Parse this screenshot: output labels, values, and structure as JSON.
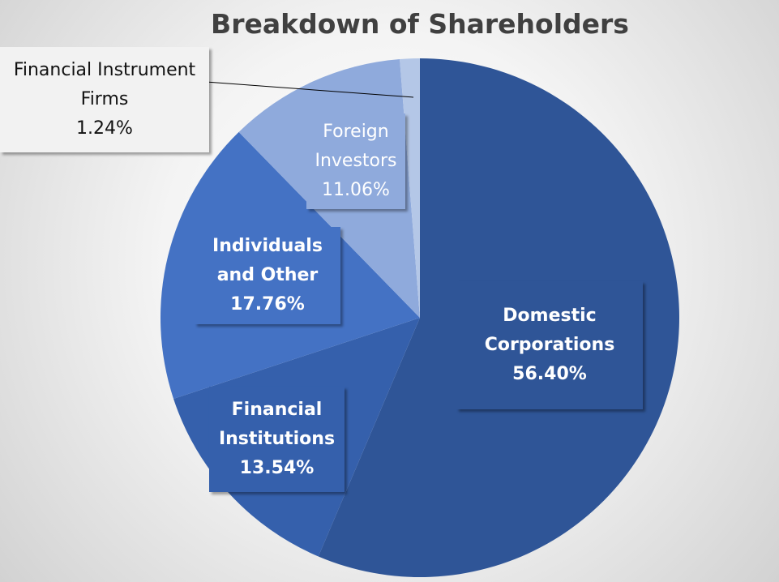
{
  "chart_data": {
    "type": "pie",
    "title": "Breakdown of Shareholders",
    "categories": [
      "Domestic Corporations",
      "Financial Institutions",
      "Individuals and Other",
      "Foreign Investors",
      "Financial Instrument Firms"
    ],
    "values": [
      56.4,
      13.54,
      17.76,
      11.06,
      1.24
    ],
    "value_labels": [
      "56.40%",
      "13.54%",
      "17.76%",
      "11.06%",
      "1.24%"
    ],
    "colors": [
      "#2f5597",
      "#3560ac",
      "#4472c4",
      "#8faadc",
      "#b4c7e7"
    ]
  }
}
